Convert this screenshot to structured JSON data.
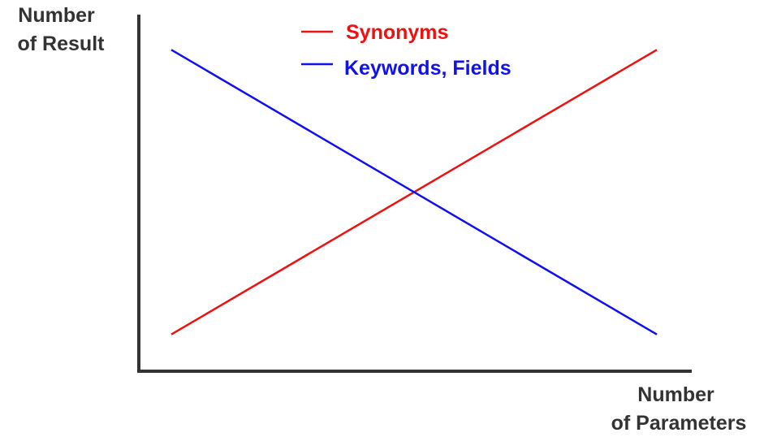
{
  "chart_data": {
    "type": "line",
    "title": "",
    "ylabel_lines": [
      "Number",
      "of Result"
    ],
    "xlabel_lines": [
      "Number",
      "of Parameters"
    ],
    "x": [
      0,
      1
    ],
    "xlim": [
      0,
      1
    ],
    "ylim": [
      0,
      1
    ],
    "grid": false,
    "legend": "top-center",
    "series": [
      {
        "name": "Synonyms",
        "color": "#ee1111",
        "values": [
          0.1,
          0.9
        ]
      },
      {
        "name": "Keywords, Fields",
        "color": "#1111ee",
        "values": [
          0.9,
          0.1
        ]
      }
    ]
  }
}
